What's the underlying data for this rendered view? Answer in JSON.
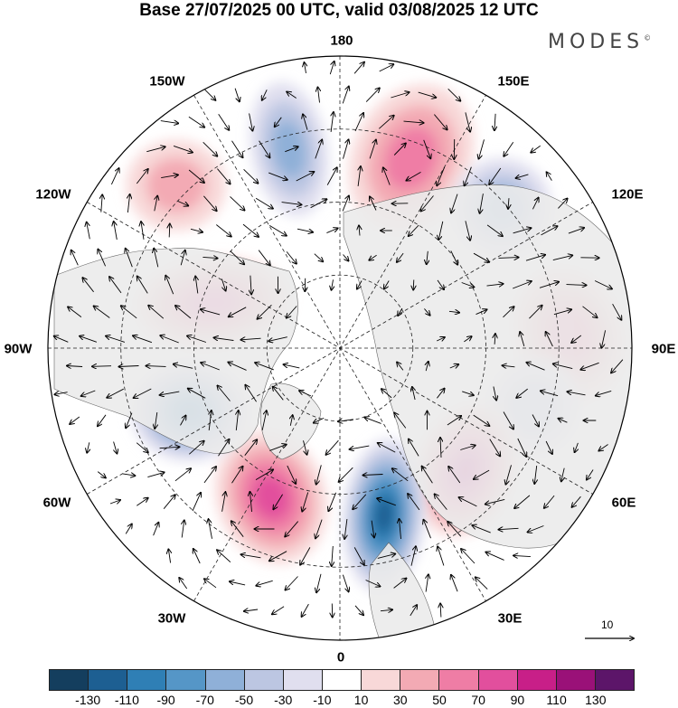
{
  "header": {
    "title": "Base 27/07/2025 00 UTC, valid 03/08/2025 12 UTC",
    "brand": "MODES",
    "brand_mark": "©"
  },
  "map": {
    "projection": "north-polar-stereographic",
    "longitude_labels": {
      "lon_180": "180",
      "lon_150e": "150E",
      "lon_120e": "120E",
      "lon_90e": "90E",
      "lon_60e": "60E",
      "lon_30e": "30E",
      "lon_0": "0",
      "lon_30w": "30W",
      "lon_60w": "60W",
      "lon_90w": "90W",
      "lon_120w": "120W",
      "lon_150w": "150W"
    },
    "anomaly_centers": [
      {
        "name": "north-pacific-low",
        "value": -55
      },
      {
        "name": "bering-high",
        "value": 65
      },
      {
        "name": "east-siberia-low",
        "value": -50
      },
      {
        "name": "central-asia-high",
        "value": 55
      },
      {
        "name": "ural-low",
        "value": -45
      },
      {
        "name": "scandinavia-high",
        "value": 95
      },
      {
        "name": "norwegian-sea-low",
        "value": -110
      },
      {
        "name": "north-atlantic-high",
        "value": 85
      },
      {
        "name": "labrador-low",
        "value": -90
      },
      {
        "name": "canada-high",
        "value": 70
      },
      {
        "name": "gulf-of-alaska-high",
        "value": 35
      }
    ]
  },
  "colorbar": {
    "colors": [
      "#143e5e",
      "#1d5f92",
      "#2f7fb5",
      "#5596c7",
      "#8fb0d8",
      "#bcc6e2",
      "#e0dfef",
      "#ffffff",
      "#f8d8d8",
      "#f3aab4",
      "#ef7da5",
      "#e24f9d",
      "#c81f88",
      "#9a1178",
      "#5c1569"
    ],
    "labels": [
      "-130",
      "-110",
      "-90",
      "-70",
      "-50",
      "-30",
      "-10",
      "10",
      "30",
      "50",
      "70",
      "90",
      "110",
      "130"
    ]
  },
  "reference_vector": {
    "label": "10"
  }
}
